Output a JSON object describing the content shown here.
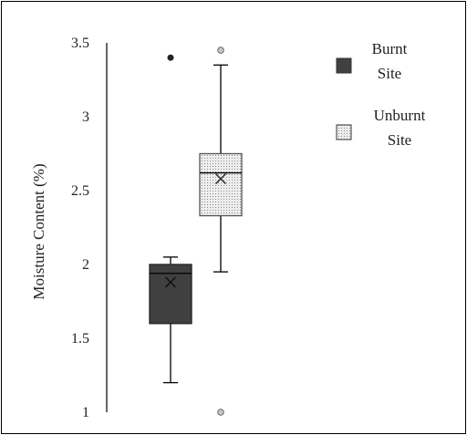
{
  "chart_data": {
    "type": "box",
    "title": "",
    "xlabel": "",
    "ylabel": "Moisture Content (%)",
    "ylim": [
      1,
      3.5
    ],
    "yticks": [
      "1",
      "1.5",
      "2",
      "2.5",
      "3",
      "3.5"
    ],
    "grid": false,
    "legend_position": "right",
    "series": [
      {
        "name": "Burnt Site",
        "name_lines": [
          "Burnt",
          "Site"
        ],
        "fill": "#404040",
        "pattern": "solid",
        "whisker_low": 1.2,
        "q1": 1.6,
        "median": 1.94,
        "q3": 2.0,
        "whisker_high": 2.05,
        "mean": 1.88,
        "outliers": [
          3.4
        ]
      },
      {
        "name": "Unburnt Site",
        "name_lines": [
          "Unburnt",
          "Site"
        ],
        "fill": "#e0e0e0",
        "pattern": "dotted",
        "whisker_low": 1.95,
        "q1": 2.33,
        "median": 2.62,
        "q3": 2.75,
        "whisker_high": 3.35,
        "mean": 2.58,
        "outliers": [
          3.45,
          1.0
        ]
      }
    ]
  }
}
